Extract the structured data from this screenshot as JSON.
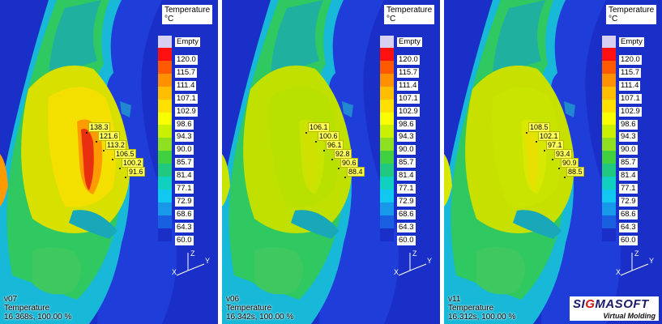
{
  "legend": {
    "title": "Temperature",
    "unit": "°C",
    "empty_label": "Empty",
    "empty_color": "#d8d0f0",
    "levels": [
      {
        "value": "120.0",
        "color": "#ff1010"
      },
      {
        "value": "115.7",
        "color": "#ff5a00"
      },
      {
        "value": "111.4",
        "color": "#ff9000"
      },
      {
        "value": "107.1",
        "color": "#ffbf00"
      },
      {
        "value": "102.9",
        "color": "#ffe000"
      },
      {
        "value": "98.6",
        "color": "#f7ff00"
      },
      {
        "value": "94.3",
        "color": "#c8f000"
      },
      {
        "value": "90.0",
        "color": "#8fe020"
      },
      {
        "value": "85.7",
        "color": "#40d040"
      },
      {
        "value": "81.4",
        "color": "#20c880"
      },
      {
        "value": "77.1",
        "color": "#10d0c0"
      },
      {
        "value": "72.9",
        "color": "#10c8f0"
      },
      {
        "value": "68.6",
        "color": "#1898e8"
      },
      {
        "value": "64.3",
        "color": "#1860e0"
      },
      {
        "value": "60.0",
        "color": "#1a2fc8"
      }
    ]
  },
  "panels": [
    {
      "version": "v07",
      "quantity": "Temperature",
      "time": "16.368s, 100.00 %",
      "probes": [
        "138.3",
        "121.6",
        "113.2",
        "106.5",
        "100.2",
        "91.6"
      ]
    },
    {
      "version": "v06",
      "quantity": "Temperature",
      "time": "16.342s, 100.00 %",
      "probes": [
        "106.1",
        "100.6",
        "96.1",
        "92.8",
        "90.6",
        "88.4"
      ]
    },
    {
      "version": "v11",
      "quantity": "Temperature",
      "time": "16.312s, 100.00 %",
      "probes": [
        "108.5",
        "102.1",
        "97.1",
        "93.4",
        "90.9",
        "88.5"
      ]
    }
  ],
  "axes": {
    "z": "Z",
    "y": "Y",
    "x": "X"
  },
  "logo": {
    "brand_a": "SI",
    "brand_b": "G",
    "brand_c": "MASOFT",
    "tagline": "Virtual Molding"
  }
}
